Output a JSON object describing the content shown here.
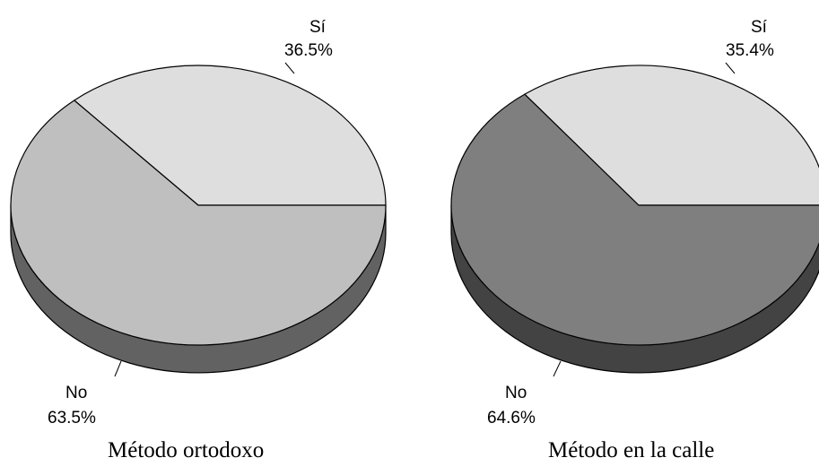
{
  "chart_data": [
    {
      "type": "pie",
      "title": "Método ortodoxo",
      "slices": [
        {
          "label": "Sí",
          "percent_label": "36.5%",
          "value": 36.5,
          "color": "#dedede"
        },
        {
          "label": "No",
          "percent_label": "63.5%",
          "value": 63.5,
          "color": "#bfbfbf"
        }
      ],
      "side_color": "#626262"
    },
    {
      "type": "pie",
      "title": "Método en la calle",
      "slices": [
        {
          "label": "Sí",
          "percent_label": "35.4%",
          "value": 35.4,
          "color": "#dedede"
        },
        {
          "label": "No",
          "percent_label": "64.6%",
          "value": 64.6,
          "color": "#7f7f7f"
        }
      ],
      "side_color": "#434343"
    }
  ]
}
